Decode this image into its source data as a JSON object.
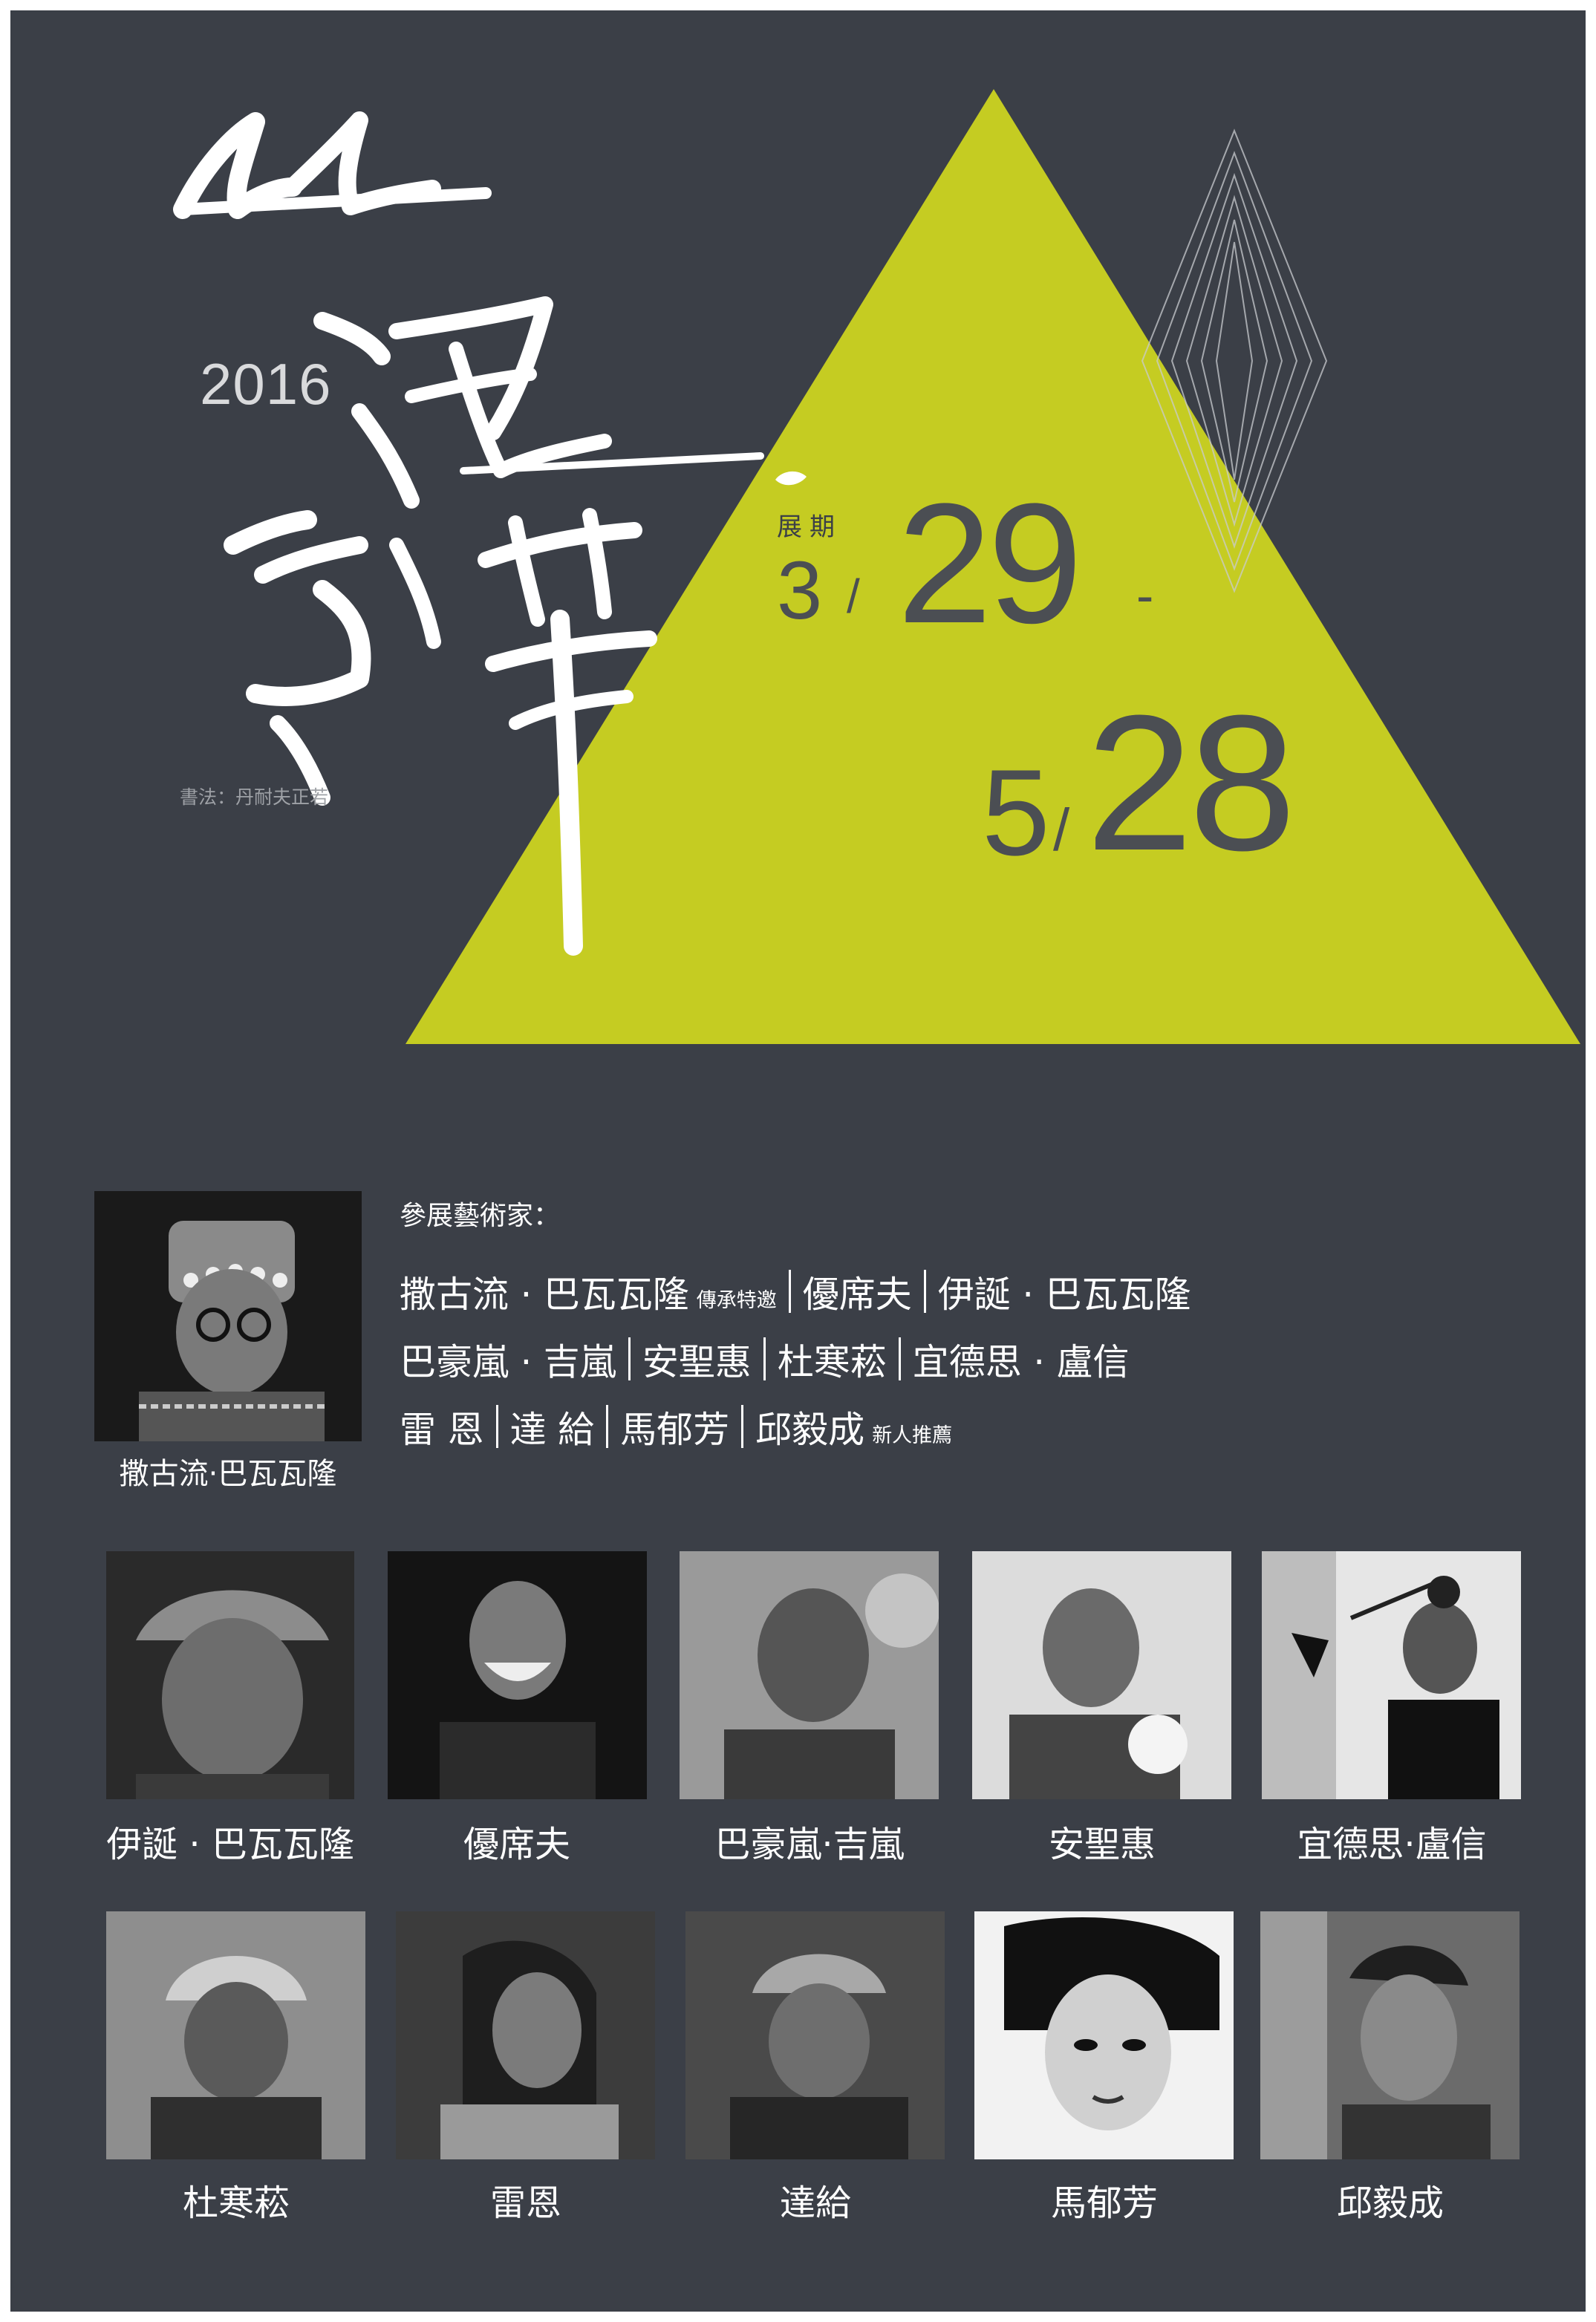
{
  "year": "2016",
  "calligraphy_text": "山海薈萃",
  "calligraphy_credit": "書法：丹耐夫正若",
  "exhibition": {
    "period_label": "展期",
    "start_month": "3",
    "start_day": "29",
    "dash": "-",
    "end_month": "5",
    "end_day": "28",
    "slash": "/"
  },
  "featured": {
    "caption": "撒古流·巴瓦瓦隆"
  },
  "participants": {
    "title": "參展藝術家：",
    "line1": [
      "撒古流 · 巴瓦瓦隆",
      "傳承特邀",
      "優席夫",
      "伊誕 · 巴瓦瓦隆"
    ],
    "line2": [
      "巴豪嵐 · 吉嵐",
      "安聖惠",
      "杜寒菘",
      "宜德思 · 盧信"
    ],
    "line3": [
      "雷 恩",
      "達 給",
      "馬郁芳",
      "邱毅成",
      "新人推薦"
    ]
  },
  "artists_row1": [
    "伊誕 · 巴瓦瓦隆",
    "優席夫",
    "巴豪嵐·吉嵐",
    "安聖惠",
    "宜德思·盧信"
  ],
  "artists_row2": [
    "杜寒菘",
    "雷恩",
    "達給",
    "馬郁芳",
    "邱毅成"
  ],
  "colors": {
    "background": "#3b3f47",
    "accent": "#c5cc22",
    "text": "#ffffff"
  }
}
